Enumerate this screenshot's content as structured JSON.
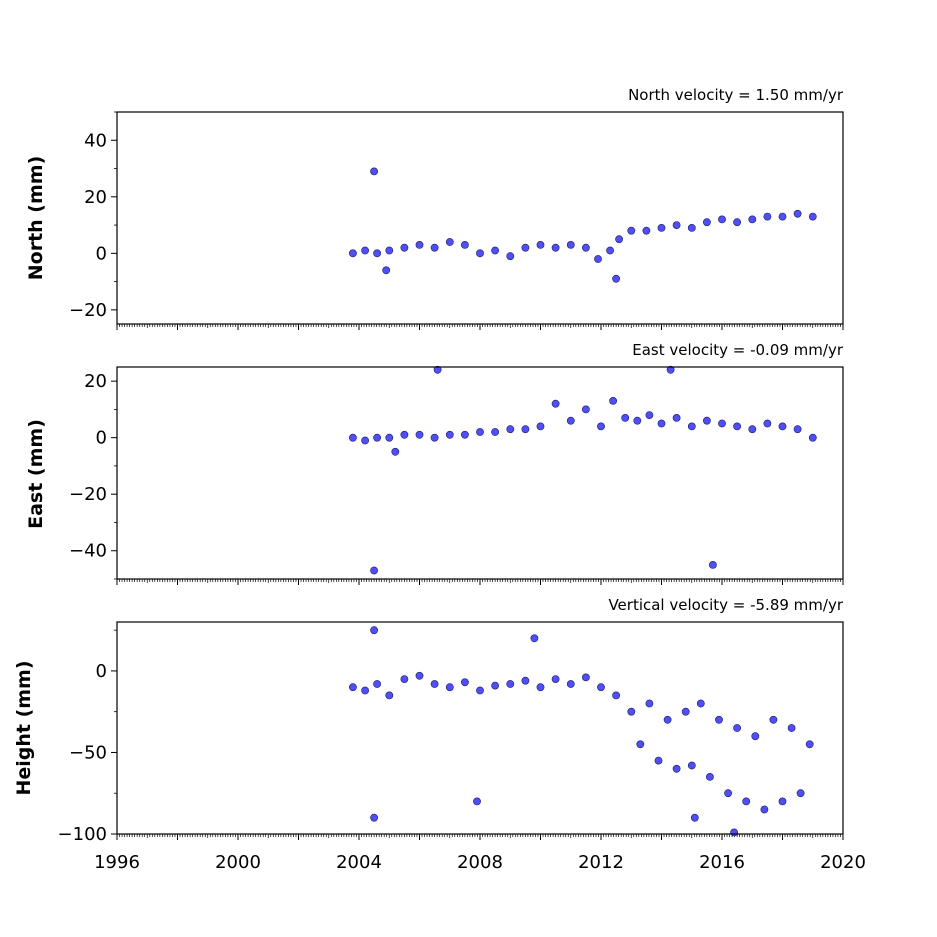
{
  "chart_data": [
    {
      "type": "scatter",
      "title": "North velocity = 1.50 mm/yr",
      "ylabel": "North (mm)",
      "xlabel": "",
      "xlim": [
        1996,
        2020
      ],
      "ylim": [
        -25,
        50
      ],
      "yticks": [
        40,
        20,
        0,
        -20
      ],
      "ytick_labels": [
        "40",
        "20",
        "0",
        "−20"
      ],
      "xtick_labels": [],
      "grid": false,
      "series": [
        {
          "x": [
            2003.8,
            2004.2,
            2004.6,
            2005.0,
            2005.5,
            2006.0,
            2006.5,
            2007.0,
            2007.5,
            2008.0,
            2008.5,
            2009.0,
            2009.5,
            2010.0,
            2010.5,
            2011.0,
            2011.5,
            2011.9,
            2012.3,
            2012.6,
            2013.0,
            2013.5,
            2014.0,
            2014.5,
            2015.0,
            2015.5,
            2016.0,
            2016.5,
            2017.0,
            2017.5,
            2018.0,
            2018.5,
            2019.0,
            2004.5,
            2004.9,
            2012.5
          ],
          "y": [
            0,
            1,
            0,
            1,
            2,
            3,
            2,
            4,
            3,
            0,
            1,
            -1,
            2,
            3,
            2,
            3,
            2,
            -2,
            1,
            5,
            8,
            8,
            9,
            10,
            9,
            11,
            12,
            11,
            12,
            13,
            13,
            14,
            13,
            29,
            -6,
            -9
          ]
        }
      ]
    },
    {
      "type": "scatter",
      "title": "East velocity = -0.09 mm/yr",
      "ylabel": "East (mm)",
      "xlabel": "",
      "xlim": [
        1996,
        2020
      ],
      "ylim": [
        -50,
        25
      ],
      "yticks": [
        20,
        0,
        -20,
        -40
      ],
      "ytick_labels": [
        "20",
        "0",
        "−20",
        "−40"
      ],
      "xtick_labels": [],
      "grid": false,
      "series": [
        {
          "x": [
            2003.8,
            2004.2,
            2004.6,
            2005.0,
            2005.5,
            2006.0,
            2006.5,
            2007.0,
            2007.5,
            2008.0,
            2008.5,
            2009.0,
            2009.5,
            2010.0,
            2010.5,
            2011.0,
            2011.5,
            2012.0,
            2012.4,
            2012.8,
            2013.2,
            2013.6,
            2014.0,
            2014.5,
            2015.0,
            2015.5,
            2016.0,
            2016.5,
            2017.0,
            2017.5,
            2018.0,
            2018.5,
            2019.0,
            2004.5,
            2006.6,
            2014.3,
            2015.7,
            2005.2
          ],
          "y": [
            0,
            -1,
            0,
            0,
            1,
            1,
            0,
            1,
            1,
            2,
            2,
            3,
            3,
            4,
            12,
            6,
            10,
            4,
            13,
            7,
            6,
            8,
            5,
            7,
            4,
            6,
            5,
            4,
            3,
            5,
            4,
            3,
            0,
            -47,
            24,
            24,
            -45,
            -5
          ]
        }
      ]
    },
    {
      "type": "scatter",
      "title": "Vertical velocity = -5.89 mm/yr",
      "ylabel": "Height (mm)",
      "xlabel": "",
      "xlim": [
        1996,
        2020
      ],
      "ylim": [
        -100,
        30
      ],
      "yticks": [
        0,
        -50,
        -100
      ],
      "ytick_labels": [
        "0",
        "−50",
        "−100"
      ],
      "xticks": [
        1996,
        2000,
        2004,
        2008,
        2012,
        2016,
        2020
      ],
      "xtick_labels": [
        "1996",
        "2000",
        "2004",
        "2008",
        "2012",
        "2016",
        "2020"
      ],
      "grid": false,
      "series": [
        {
          "x": [
            2003.8,
            2004.2,
            2004.6,
            2005.0,
            2005.5,
            2006.0,
            2006.5,
            2007.0,
            2007.5,
            2008.0,
            2008.5,
            2009.0,
            2009.5,
            2010.0,
            2010.5,
            2011.0,
            2011.5,
            2012.0,
            2012.5,
            2013.0,
            2013.3,
            2013.6,
            2013.9,
            2014.2,
            2014.5,
            2014.8,
            2015.0,
            2015.3,
            2015.6,
            2015.9,
            2016.2,
            2016.5,
            2016.8,
            2017.1,
            2017.4,
            2017.7,
            2018.0,
            2018.3,
            2018.6,
            2018.9,
            2004.5,
            2004.5,
            2007.9,
            2009.8,
            2016.4,
            2015.1
          ],
          "y": [
            -10,
            -12,
            -8,
            -15,
            -5,
            -3,
            -8,
            -10,
            -7,
            -12,
            -9,
            -8,
            -6,
            -10,
            -5,
            -8,
            -4,
            -10,
            -15,
            -25,
            -45,
            -20,
            -55,
            -30,
            -60,
            -25,
            -58,
            -20,
            -65,
            -30,
            -75,
            -35,
            -80,
            -40,
            -85,
            -30,
            -80,
            -35,
            -75,
            -45,
            25,
            -90,
            -80,
            20,
            -99,
            -90
          ]
        }
      ]
    }
  ]
}
